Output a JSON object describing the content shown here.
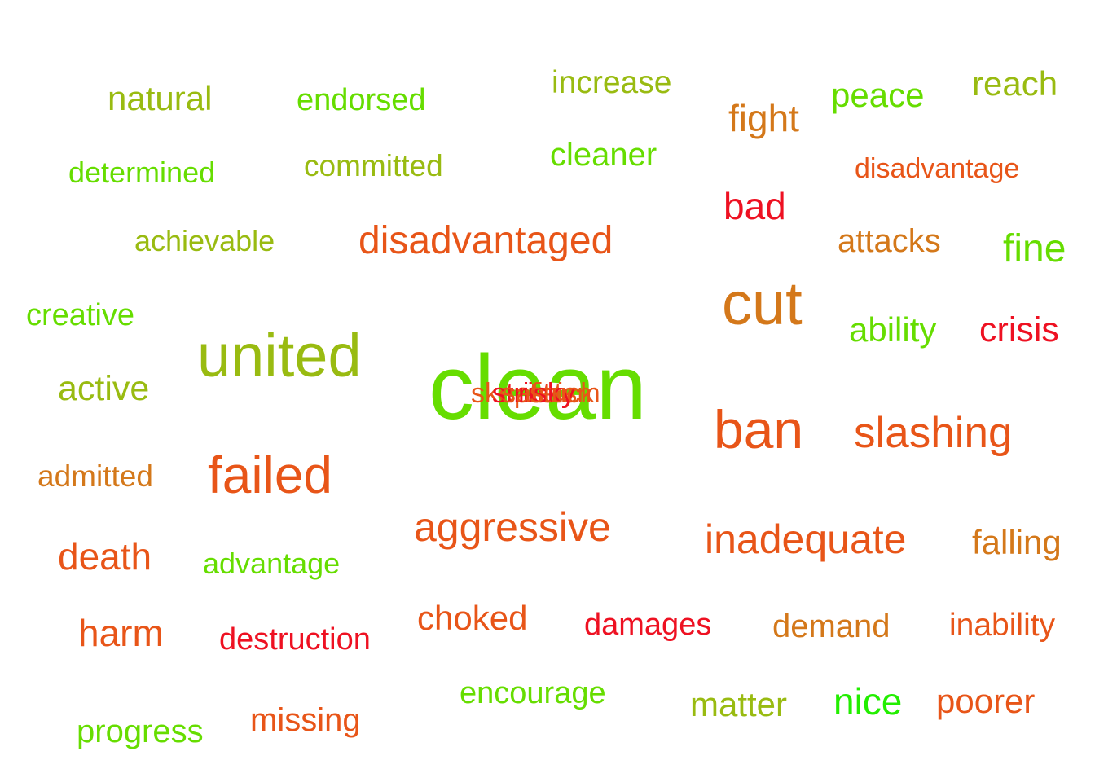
{
  "palette": {
    "lime": "#66dd00",
    "olive": "#99bb11",
    "amber": "#d4781a",
    "orange": "#e85518",
    "red": "#ee1122",
    "green": "#22ee00"
  },
  "words": [
    {
      "text": "clean",
      "tone": "lime"
    },
    {
      "text": "united",
      "tone": "olive"
    },
    {
      "text": "cut",
      "tone": "amber"
    },
    {
      "text": "ban",
      "tone": "orange"
    },
    {
      "text": "failed",
      "tone": "orange"
    },
    {
      "text": "slashing",
      "tone": "orange"
    },
    {
      "text": "disadvantaged",
      "tone": "orange"
    },
    {
      "text": "aggressive",
      "tone": "orange"
    },
    {
      "text": "inadequate",
      "tone": "orange"
    },
    {
      "text": "natural",
      "tone": "olive"
    },
    {
      "text": "endorsed",
      "tone": "lime"
    },
    {
      "text": "increase",
      "tone": "olive"
    },
    {
      "text": "fight",
      "tone": "amber"
    },
    {
      "text": "peace",
      "tone": "lime"
    },
    {
      "text": "reach",
      "tone": "olive"
    },
    {
      "text": "determined",
      "tone": "lime"
    },
    {
      "text": "committed",
      "tone": "olive"
    },
    {
      "text": "cleaner",
      "tone": "lime"
    },
    {
      "text": "disadvantage",
      "tone": "orange"
    },
    {
      "text": "bad",
      "tone": "red"
    },
    {
      "text": "achievable",
      "tone": "olive"
    },
    {
      "text": "attacks",
      "tone": "amber"
    },
    {
      "text": "fine",
      "tone": "lime"
    },
    {
      "text": "creative",
      "tone": "lime"
    },
    {
      "text": "ability",
      "tone": "lime"
    },
    {
      "text": "crisis",
      "tone": "red"
    },
    {
      "text": "active",
      "tone": "olive"
    },
    {
      "text": "admitted",
      "tone": "amber"
    },
    {
      "text": "death",
      "tone": "orange"
    },
    {
      "text": "advantage",
      "tone": "lime"
    },
    {
      "text": "falling",
      "tone": "amber"
    },
    {
      "text": "harm",
      "tone": "orange"
    },
    {
      "text": "destruction",
      "tone": "red"
    },
    {
      "text": "choked",
      "tone": "orange"
    },
    {
      "text": "damages",
      "tone": "red"
    },
    {
      "text": "demand",
      "tone": "amber"
    },
    {
      "text": "inability",
      "tone": "orange"
    },
    {
      "text": "encourage",
      "tone": "lime"
    },
    {
      "text": "matter",
      "tone": "olive"
    },
    {
      "text": "nice",
      "tone": "green"
    },
    {
      "text": "poorer",
      "tone": "orange"
    },
    {
      "text": "progress",
      "tone": "lime"
    },
    {
      "text": "missing",
      "tone": "orange"
    },
    {
      "text": "skepticism",
      "tone": "orange"
    },
    {
      "text": "strict",
      "tone": "red"
    },
    {
      "text": "safety",
      "tone": "orange"
    },
    {
      "text": "risky",
      "tone": "red"
    },
    {
      "text": "stuck",
      "tone": "orange"
    }
  ]
}
